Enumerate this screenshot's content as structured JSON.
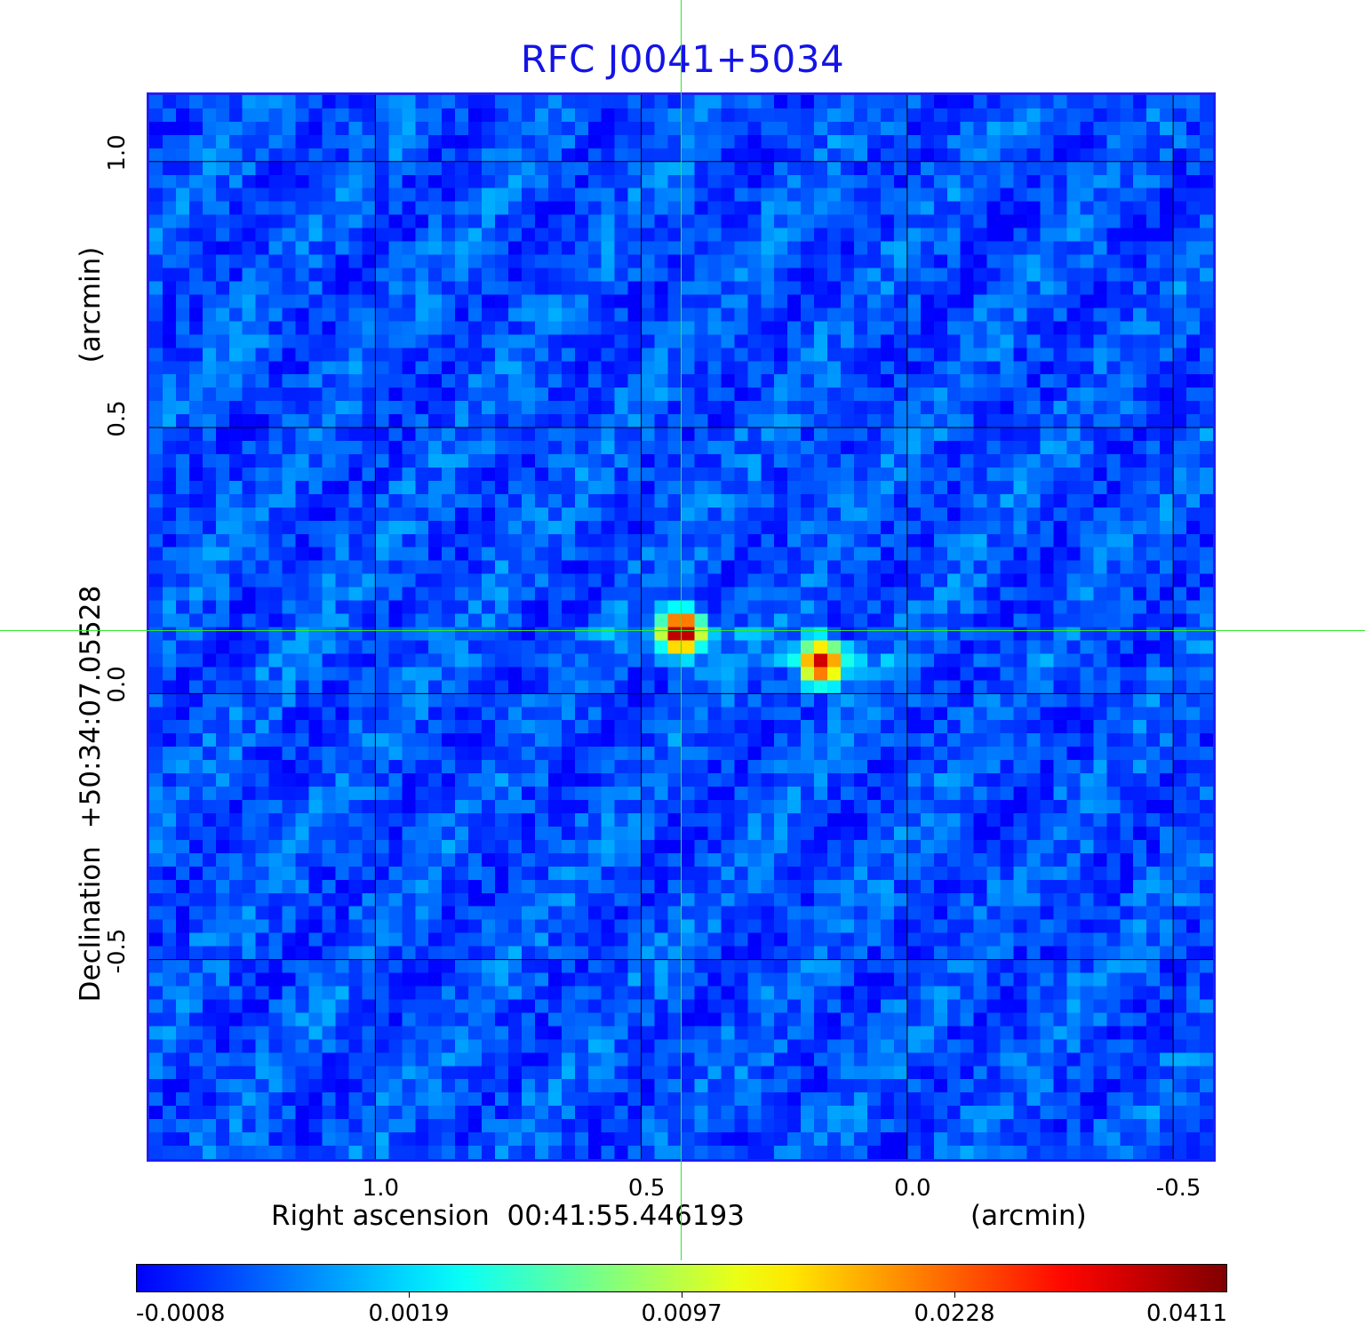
{
  "chart_data": {
    "type": "heatmap",
    "title": "RFC J0041+5034",
    "xlabel": "Right ascension  00:41:55.446193",
    "x_unit": "(arcmin)",
    "ylabel": "Declination  +50:34:07.05528",
    "y_unit": "(arcmin)",
    "x_ticks": [
      "1.0",
      "0.5",
      "0.0",
      "-0.5"
    ],
    "x_tick_values": [
      1.0,
      0.5,
      0.0,
      -0.5
    ],
    "y_ticks": [
      "1.0",
      "0.5",
      "0.0",
      "-0.5"
    ],
    "y_tick_values": [
      1.0,
      0.5,
      0.0,
      -0.5
    ],
    "xlim": [
      1.43,
      -0.58
    ],
    "ylim": [
      -0.88,
      1.13
    ],
    "x_reversed": true,
    "grid": true,
    "colormap": "jet",
    "colorbar_ticks": [
      "-0.0008",
      "0.0019",
      "0.0097",
      "0.0228",
      "0.0411"
    ],
    "colorbar_range": [
      -0.0008,
      0.0411
    ],
    "sources": [
      {
        "x": 0.425,
        "y": 0.115,
        "peak": 0.0411
      },
      {
        "x": 0.16,
        "y": 0.058,
        "peak": 0.034
      }
    ],
    "crosshair": {
      "x": 0.425,
      "y": 0.118
    },
    "background_level": 0.0002
  },
  "colors": {
    "title": "#1414e6",
    "frame": "#1f1ff0",
    "crosshair": "#2ee82e",
    "grid": "#000000"
  }
}
